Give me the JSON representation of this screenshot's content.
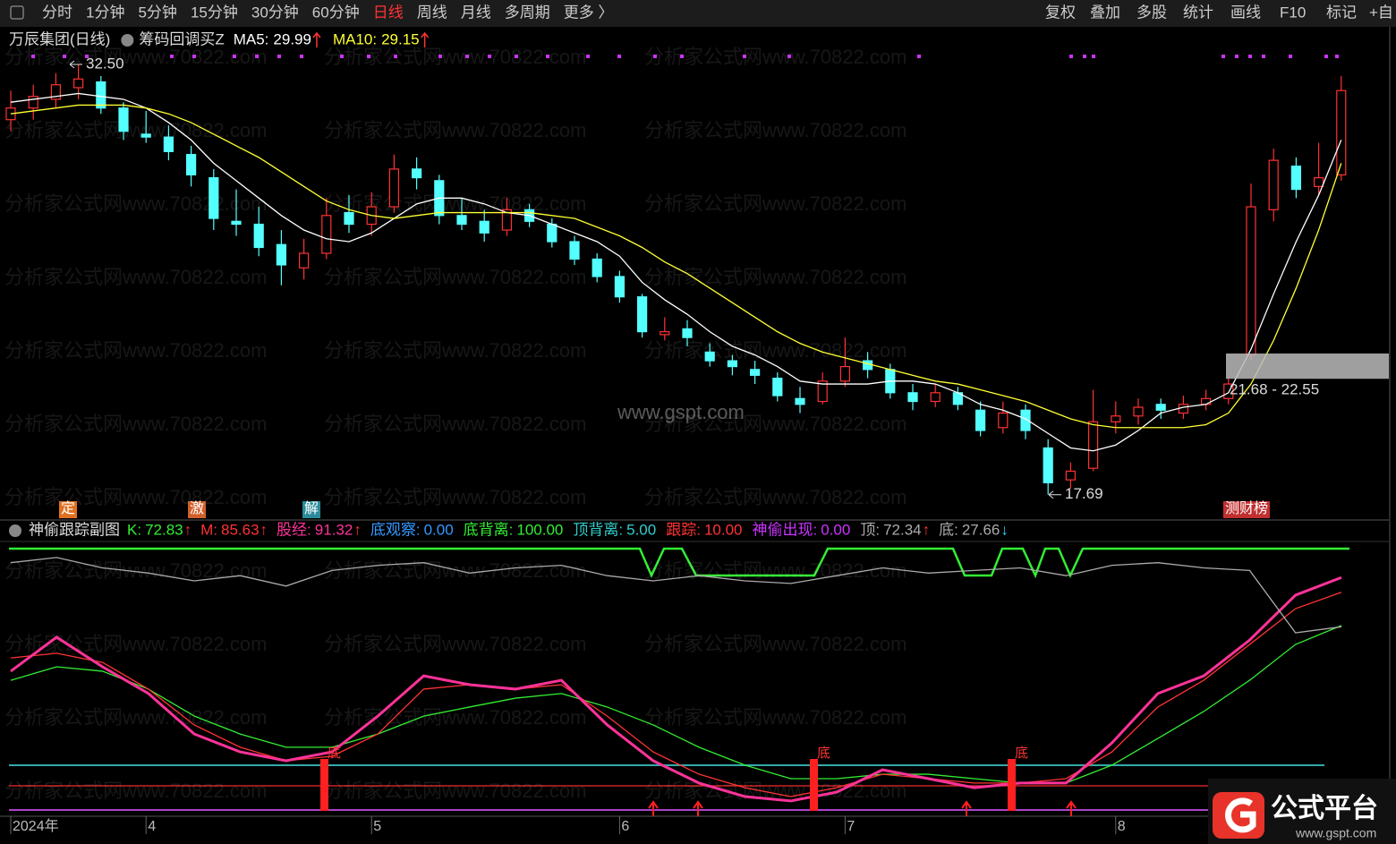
{
  "toolbar": {
    "left": [
      "分时",
      "1分钟",
      "5分钟",
      "15分钟",
      "30分钟",
      "60分钟",
      "日线",
      "周线",
      "月线",
      "多周期",
      "更多 〉"
    ],
    "active_index": 6,
    "right": [
      "复权",
      "叠加",
      "多股",
      "统计",
      "画线",
      "F10",
      "标记",
      "+自"
    ]
  },
  "header": {
    "stock": "万辰集团(日线)",
    "indicator": "筹码回调买Z"
  },
  "watermark": "分析家公式网www.70822.com",
  "center_watermark": "www.gspt.com",
  "logo": {
    "title": "公式平台",
    "url": "www.gspt.com"
  },
  "signals": [
    "定",
    "激",
    "解",
    "测财榜"
  ],
  "chart_data": [
    {
      "type": "candlestick",
      "up_color": "#ff3232",
      "down_color": "#54ffff",
      "ylim": [
        16.85,
        33.64
      ],
      "categories": [
        "2024年",
        null,
        null,
        null,
        null,
        null,
        "4",
        null,
        null,
        null,
        null,
        null,
        null,
        null,
        null,
        null,
        "5",
        null,
        null,
        null,
        null,
        null,
        null,
        null,
        null,
        null,
        null,
        "6",
        null,
        null,
        null,
        null,
        null,
        null,
        null,
        null,
        null,
        "7",
        null,
        null,
        null,
        null,
        null,
        null,
        null,
        null,
        null,
        null,
        null,
        "8",
        null,
        null,
        null,
        null,
        null,
        null,
        null,
        null,
        null,
        null
      ],
      "values": [
        [
          30.6,
          31.6,
          30.2,
          31.0
        ],
        [
          31.0,
          31.8,
          30.6,
          31.4
        ],
        [
          31.3,
          32.2,
          31.0,
          31.8
        ],
        [
          31.7,
          32.5,
          31.3,
          32.0
        ],
        [
          31.9,
          32.1,
          30.8,
          31.0
        ],
        [
          31.0,
          31.2,
          29.9,
          30.2
        ],
        [
          30.1,
          30.9,
          29.8,
          30.0
        ],
        [
          30.0,
          30.4,
          29.2,
          29.5
        ],
        [
          29.4,
          29.7,
          28.3,
          28.7
        ],
        [
          28.6,
          28.9,
          26.8,
          27.2
        ],
        [
          27.1,
          28.2,
          26.6,
          27.0
        ],
        [
          27.0,
          27.6,
          25.9,
          26.2
        ],
        [
          26.3,
          26.8,
          24.9,
          25.6
        ],
        [
          25.5,
          26.5,
          25.1,
          26.0
        ],
        [
          26.0,
          27.9,
          25.8,
          27.3
        ],
        [
          27.4,
          28.0,
          26.7,
          27.0
        ],
        [
          27.0,
          28.1,
          26.6,
          27.6
        ],
        [
          27.6,
          29.4,
          27.4,
          28.9
        ],
        [
          28.9,
          29.3,
          28.2,
          28.6
        ],
        [
          28.5,
          28.7,
          27.0,
          27.3
        ],
        [
          27.3,
          27.9,
          26.8,
          27.0
        ],
        [
          27.1,
          27.5,
          26.4,
          26.7
        ],
        [
          26.8,
          27.9,
          26.6,
          27.5
        ],
        [
          27.5,
          27.7,
          26.9,
          27.1
        ],
        [
          27.0,
          27.2,
          26.2,
          26.4
        ],
        [
          26.4,
          26.6,
          25.6,
          25.8
        ],
        [
          25.8,
          26.0,
          25.0,
          25.2
        ],
        [
          25.2,
          25.4,
          24.3,
          24.5
        ],
        [
          24.5,
          24.6,
          23.1,
          23.3
        ],
        [
          23.2,
          23.8,
          23.0,
          23.3
        ],
        [
          23.4,
          23.7,
          22.8,
          23.1
        ],
        [
          22.6,
          22.9,
          22.1,
          22.3
        ],
        [
          22.3,
          22.5,
          21.8,
          22.1
        ],
        [
          22.0,
          22.3,
          21.5,
          21.8
        ],
        [
          21.7,
          21.9,
          20.9,
          21.1
        ],
        [
          21.0,
          21.4,
          20.5,
          20.8
        ],
        [
          20.9,
          21.9,
          20.8,
          21.6
        ],
        [
          21.6,
          23.1,
          21.4,
          22.1
        ],
        [
          22.3,
          22.6,
          21.7,
          22.0
        ],
        [
          22.0,
          22.2,
          21.0,
          21.2
        ],
        [
          21.2,
          21.5,
          20.6,
          20.9
        ],
        [
          20.9,
          21.5,
          20.7,
          21.2
        ],
        [
          21.2,
          21.4,
          20.6,
          20.8
        ],
        [
          20.6,
          20.9,
          19.7,
          19.9
        ],
        [
          20.0,
          20.9,
          19.8,
          20.5
        ],
        [
          20.6,
          20.8,
          19.6,
          19.9
        ],
        [
          19.3,
          19.6,
          17.69,
          18.1
        ],
        [
          18.2,
          18.8,
          17.9,
          18.5
        ],
        [
          18.6,
          21.3,
          18.5,
          20.2
        ],
        [
          20.2,
          20.9,
          19.8,
          20.4
        ],
        [
          20.4,
          21.0,
          20.1,
          20.7
        ],
        [
          20.8,
          21.0,
          20.3,
          20.6
        ],
        [
          20.5,
          21.1,
          20.3,
          20.8
        ],
        [
          20.8,
          21.3,
          20.6,
          21.0
        ],
        [
          21.0,
          21.7,
          20.8,
          21.5
        ],
        [
          22.5,
          28.4,
          22.3,
          27.6
        ],
        [
          27.5,
          29.6,
          27.1,
          29.2
        ],
        [
          29.0,
          29.3,
          27.9,
          28.2
        ],
        [
          28.3,
          29.8,
          28.0,
          28.6
        ],
        [
          28.7,
          32.1,
          28.5,
          31.6
        ]
      ],
      "series": [
        {
          "name": "MA5:",
          "current": 29.99,
          "color": "#ffffff",
          "values": [
            31.2,
            31.3,
            31.4,
            31.5,
            31.4,
            31.3,
            31.0,
            30.5,
            29.9,
            29.1,
            28.5,
            27.9,
            27.3,
            26.8,
            26.5,
            26.4,
            26.7,
            27.2,
            27.7,
            27.9,
            27.9,
            27.7,
            27.4,
            27.3,
            27.0,
            26.7,
            26.4,
            25.9,
            25.0,
            24.4,
            23.9,
            23.3,
            22.8,
            22.5,
            22.1,
            21.6,
            21.5,
            21.5,
            21.5,
            21.6,
            21.6,
            21.5,
            21.2,
            20.8,
            20.6,
            20.3,
            19.8,
            19.3,
            19.2,
            19.4,
            19.9,
            20.5,
            20.7,
            20.8,
            21.2,
            22.7,
            24.6,
            26.4,
            28.0,
            29.9
          ]
        },
        {
          "name": "MA10:",
          "current": 29.15,
          "color": "#ffff33",
          "values": [
            30.8,
            30.9,
            31.0,
            31.1,
            31.1,
            31.1,
            31.0,
            30.8,
            30.5,
            30.1,
            29.7,
            29.3,
            28.8,
            28.3,
            27.8,
            27.5,
            27.3,
            27.2,
            27.3,
            27.4,
            27.4,
            27.4,
            27.4,
            27.4,
            27.3,
            27.2,
            26.9,
            26.6,
            26.2,
            25.7,
            25.3,
            24.8,
            24.3,
            23.8,
            23.3,
            22.9,
            22.6,
            22.4,
            22.2,
            22.0,
            21.8,
            21.6,
            21.5,
            21.3,
            21.1,
            20.9,
            20.6,
            20.3,
            20.1,
            20.0,
            20.0,
            20.0,
            20.0,
            20.1,
            20.5,
            21.5,
            23.0,
            24.8,
            26.8,
            29.1
          ]
        }
      ],
      "high_label": {
        "value": 32.5,
        "label": "32.50"
      },
      "low_label": 17.69,
      "range_box": {
        "low": 21.68,
        "high": 22.55,
        "label": "21.68 - 22.55"
      }
    },
    {
      "type": "line",
      "title": "神偷跟踪副图",
      "ylim": [
        0,
        100
      ],
      "signal_label": "底",
      "indicators": [
        {
          "name": "K:",
          "value": 72.83,
          "color": "#33ee33",
          "arrow": "↑",
          "values": [
            51.7,
            56.9,
            55.2,
            48.3,
            37.9,
            31.0,
            25.9,
            25.9,
            31.0,
            37.9,
            41.4,
            44.8,
            46.6,
            41.4,
            34.5,
            25.9,
            19.0,
            13.8,
            13.8,
            15.5,
            15.5,
            13.8,
            12.1,
            12.1,
            19.0,
            29.3,
            39.7,
            51.7,
            65.5,
            72.8
          ]
        },
        {
          "name": "M:",
          "value": 85.63,
          "color": "#ff3333",
          "arrow": "↑",
          "values": [
            60.3,
            62.1,
            58.6,
            48.3,
            34.5,
            25.9,
            20.7,
            22.4,
            31.0,
            48.3,
            50.0,
            48.3,
            50.0,
            37.9,
            24.1,
            15.5,
            10.3,
            6.9,
            10.3,
            15.5,
            13.8,
            12.1,
            12.1,
            13.8,
            24.1,
            41.4,
            51.7,
            65.5,
            79.3,
            85.6
          ]
        },
        {
          "name": "股经:",
          "value": 91.32,
          "color": "#ff3399",
          "arrow": "↑",
          "values": [
            55.2,
            68.3,
            56.9,
            46.6,
            31.0,
            24.1,
            20.7,
            24.1,
            37.9,
            53.4,
            50.0,
            48.3,
            51.7,
            34.5,
            20.7,
            12.1,
            6.9,
            5.2,
            8.6,
            17.2,
            13.8,
            10.3,
            12.1,
            12.1,
            27.6,
            46.6,
            53.4,
            67.2,
            84.5,
            91.3
          ]
        },
        {
          "name": "底观察:",
          "value": {
            "value": 0,
            "label": "0.00"
          },
          "color": "#3399ff"
        },
        {
          "name": "底背离:",
          "value": {
            "value": 100,
            "label": "100.00"
          },
          "color": "#33ee33"
        },
        {
          "name": "顶背离:",
          "value": {
            "value": 5,
            "label": "5.00"
          },
          "color": "#33cccc"
        },
        {
          "name": "跟踪:",
          "value": {
            "value": 10,
            "label": "10.00"
          },
          "color": "#ff3333"
        },
        {
          "name": "神偷出现:",
          "value": {
            "value": 0,
            "label": "0.00"
          },
          "color": "#cc33ff"
        },
        {
          "name": "顶:",
          "value": 72.34,
          "color": "#aaaaaa",
          "arrow": "↑",
          "values": [
            97,
            99,
            95,
            93,
            90,
            92,
            88,
            94,
            96,
            97,
            93,
            95,
            96,
            92,
            90,
            92,
            90,
            89,
            92,
            95,
            93,
            94,
            95,
            92,
            96,
            97,
            95,
            94,
            70,
            72.3
          ]
        },
        {
          "name": "底:",
          "value": 27.66,
          "color": "#aaaaaa",
          "arrow": "↓",
          "arrow_color": "#33ccff"
        }
      ]
    }
  ]
}
